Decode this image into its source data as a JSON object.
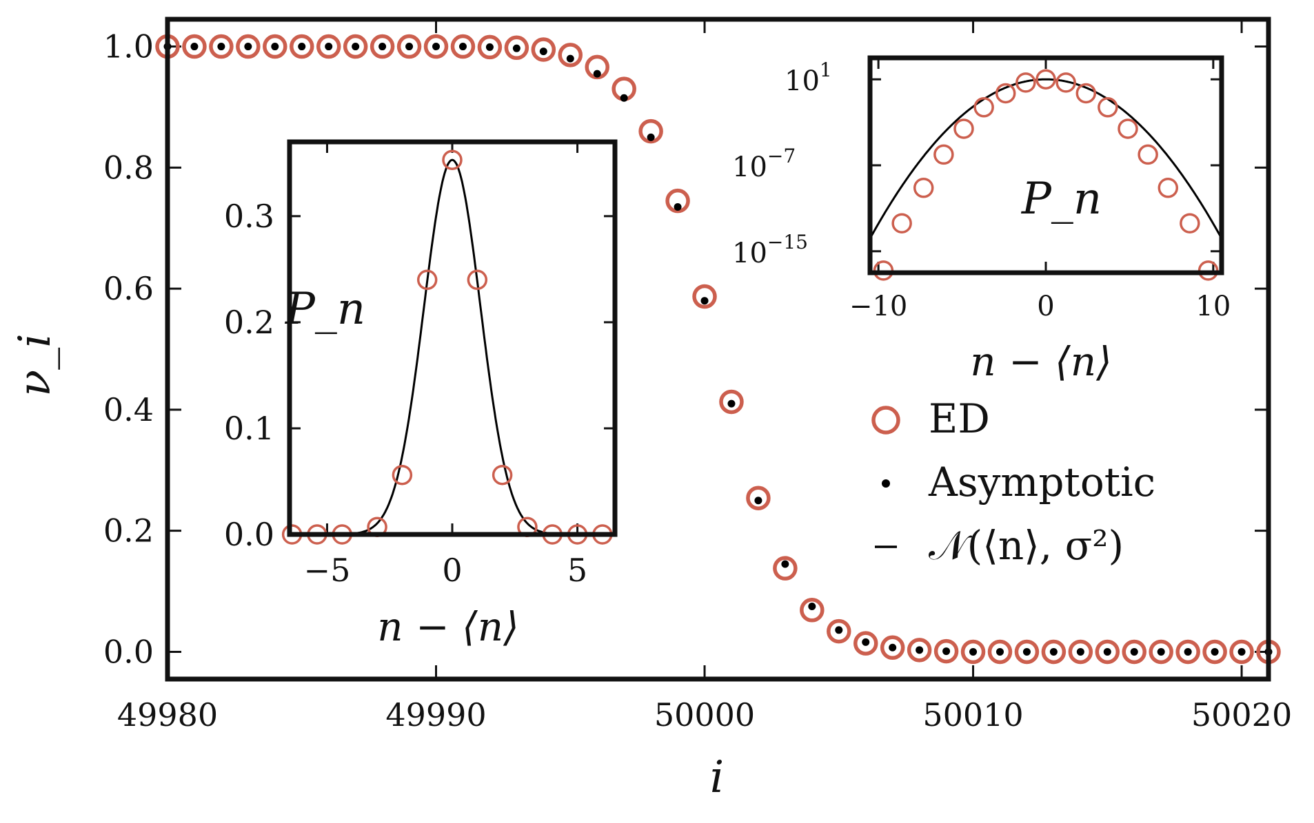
{
  "chart_data": [
    {
      "id": "main",
      "type": "scatter",
      "xlabel": "i",
      "ylabel": "ν_i",
      "xlim": [
        49980,
        50021
      ],
      "ylim": [
        -0.045,
        1.045
      ],
      "x_ticks": [
        "49980",
        "49990",
        "50000",
        "50010",
        "50020"
      ],
      "y_ticks": [
        "0.0",
        "0.2",
        "0.4",
        "0.6",
        "0.8",
        "1.0"
      ],
      "x_tick_values": [
        49980,
        49990,
        50000,
        50010,
        50020
      ],
      "y_tick_values": [
        0.0,
        0.2,
        0.4,
        0.6,
        0.8,
        1.0
      ],
      "x": [
        49980,
        49981,
        49982,
        49983,
        49984,
        49985,
        49986,
        49987,
        49988,
        49989,
        49990,
        49991,
        49992,
        49993,
        49994,
        49995,
        49996,
        49997,
        49998,
        49999,
        50000,
        50001,
        50002,
        50003,
        50004,
        50005,
        50006,
        50007,
        50008,
        50009,
        50010,
        50011,
        50012,
        50013,
        50014,
        50015,
        50016,
        50017,
        50018,
        50019,
        50020,
        50021
      ],
      "series": [
        {
          "name": "ED",
          "marker": "open-circle",
          "color": "#cc5f4e",
          "values": [
            1.0,
            1.0,
            1.0,
            1.0,
            1.0,
            1.0,
            1.0,
            1.0,
            1.0,
            1.0,
            1.0,
            1.0,
            0.999,
            0.998,
            0.995,
            0.986,
            0.966,
            0.93,
            0.86,
            0.745,
            0.587,
            0.413,
            0.254,
            0.138,
            0.069,
            0.034,
            0.014,
            0.007,
            0.003,
            0.001,
            0.0,
            0.0,
            0.0,
            0.0,
            0.0,
            0.0,
            0.0,
            0.0,
            0.0,
            0.0,
            0.0,
            0.0
          ]
        },
        {
          "name": "Asymptotic",
          "marker": "dot",
          "color": "#000000",
          "values": [
            1.0,
            1.0,
            1.0,
            1.0,
            1.0,
            1.0,
            1.0,
            1.0,
            1.0,
            1.0,
            1.0,
            1.0,
            0.999,
            0.997,
            0.992,
            0.98,
            0.955,
            0.915,
            0.85,
            0.735,
            0.58,
            0.41,
            0.25,
            0.145,
            0.075,
            0.036,
            0.016,
            0.007,
            0.003,
            0.001,
            0.0,
            0.0,
            0.0,
            0.0,
            0.0,
            0.0,
            0.0,
            0.0,
            0.0,
            0.0,
            0.0,
            0.0
          ]
        }
      ],
      "legend": {
        "placement": "lower-right",
        "entries": [
          {
            "label": "ED",
            "marker": "open-circle",
            "color": "#cc5f4e"
          },
          {
            "label": "Asymptotic",
            "marker": "dot",
            "color": "#000000"
          },
          {
            "label": "𝒩(⟨n⟩, σ²)",
            "marker": "line",
            "color": "#000000"
          }
        ]
      }
    },
    {
      "id": "inset-linear",
      "type": "scatter",
      "annotation": "P_n",
      "xlabel": "n − ⟨n⟩",
      "xlim": [
        -6.5,
        6.5
      ],
      "ylim": [
        0.0,
        0.37
      ],
      "x_ticks": [
        "−5",
        "0",
        "5"
      ],
      "x_tick_values": [
        -5,
        0,
        5
      ],
      "y_ticks": [
        "0.0",
        "0.1",
        "0.2",
        "0.3"
      ],
      "y_tick_values": [
        0.0,
        0.1,
        0.2,
        0.3
      ],
      "x": [
        -6.4,
        -5.4,
        -4.4,
        -3.0,
        -2.0,
        -1.0,
        0.0,
        1.0,
        2.0,
        3.0,
        4.0,
        5.0,
        6.0
      ],
      "series": [
        {
          "name": "ED",
          "marker": "open-circle",
          "color": "#cc5f4e",
          "values": [
            0.0,
            0.0,
            0.0,
            0.007,
            0.056,
            0.24,
            0.353,
            0.24,
            0.056,
            0.007,
            0.0,
            0.0,
            0.0
          ]
        },
        {
          "name": "𝒩(⟨n⟩, σ²)",
          "marker": "line",
          "color": "#000000",
          "sigma": 1.13
        }
      ]
    },
    {
      "id": "inset-log",
      "type": "scatter",
      "annotation": "P_n",
      "xlabel": "n − ⟨n⟩",
      "xlim": [
        -10.5,
        10.5
      ],
      "yscale": "log",
      "ylim": [
        -17,
        3
      ],
      "x_ticks": [
        "−10",
        "0",
        "10"
      ],
      "x_tick_values": [
        -10,
        0,
        10
      ],
      "y_ticks": [
        {
          "base": "10",
          "exp": "1"
        },
        {
          "base": "10",
          "exp": "−7"
        },
        {
          "base": "10",
          "exp": "−15"
        }
      ],
      "y_tick_values": [
        1,
        -7,
        -15
      ],
      "x": [
        -9.7,
        -8.6,
        -7.3,
        -6.1,
        -4.9,
        -3.7,
        -2.4,
        -1.2,
        0.0,
        1.2,
        2.4,
        3.7,
        4.9,
        6.1,
        7.3,
        8.6,
        9.7
      ],
      "series": [
        {
          "name": "ED",
          "marker": "open-circle",
          "color": "#cc5f4e",
          "values": [
            -16.8,
            -12.4,
            -9.1,
            -6.0,
            -3.6,
            -1.6,
            -0.3,
            0.7,
            1.0,
            0.7,
            -0.3,
            -1.6,
            -3.6,
            -6.0,
            -9.1,
            -12.4,
            -16.8
          ]
        },
        {
          "name": "𝒩(⟨n⟩, σ²)",
          "marker": "line",
          "color": "#000000",
          "sigma": 1.13
        }
      ]
    }
  ]
}
